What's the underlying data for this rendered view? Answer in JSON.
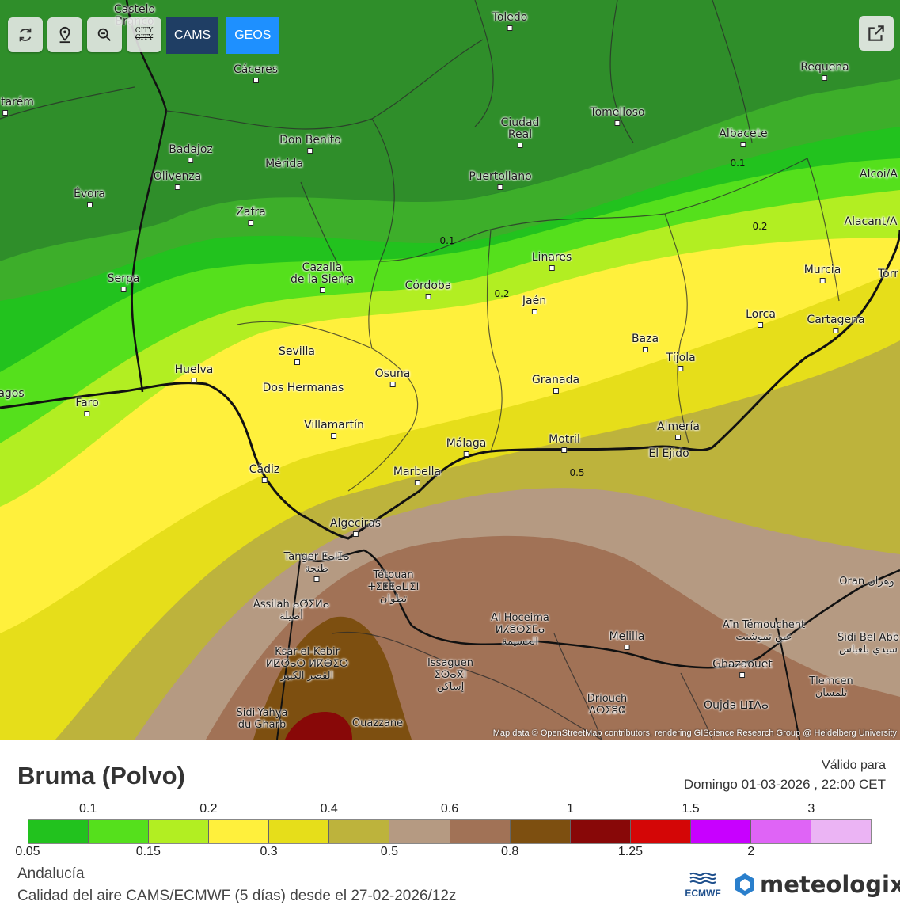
{
  "toolbar": {
    "refresh_icon": "refresh-icon",
    "location_icon": "map-pin-icon",
    "zoom_icon": "zoom-out-icon",
    "city_icon_top": "CITY",
    "city_icon_bottom": "CITY",
    "cams_label": "CAMS",
    "geos_label": "GEOS",
    "share_icon": "share-icon"
  },
  "map": {
    "attribution": "Map data © OpenStreetMap contributors, rendering GIScience Research Group @ Heidelberg University",
    "contour_labels": [
      "0.1",
      "0.1",
      "0.2",
      "0.2",
      "0.5"
    ],
    "places": [
      {
        "name": "Castelo Branco",
        "lines": [
          "Castelo",
          "Branco"
        ]
      },
      {
        "name": "Toledo"
      },
      {
        "name": "Requena"
      },
      {
        "name": "Cáceres"
      },
      {
        "name": "tarém"
      },
      {
        "name": "Tomelloso"
      },
      {
        "name": "Ciudad Real",
        "lines": [
          "Ciudad",
          "Real"
        ]
      },
      {
        "name": "Albacete"
      },
      {
        "name": "Badajoz"
      },
      {
        "name": "Don Benito"
      },
      {
        "name": "Mérida"
      },
      {
        "name": "Olivenza"
      },
      {
        "name": "Évora"
      },
      {
        "name": "Puertollano"
      },
      {
        "name": "Alcoi/A"
      },
      {
        "name": "Zafra"
      },
      {
        "name": "Alacant/A"
      },
      {
        "name": "Linares"
      },
      {
        "name": "Cazalla de la Sierra",
        "lines": [
          "Cazalla",
          "de la Sierra"
        ]
      },
      {
        "name": "Córdoba"
      },
      {
        "name": "Murcia"
      },
      {
        "name": "Serpa"
      },
      {
        "name": "Jaén"
      },
      {
        "name": "Torr"
      },
      {
        "name": "Lorca"
      },
      {
        "name": "Cartagena"
      },
      {
        "name": "Baza"
      },
      {
        "name": "Sevilla"
      },
      {
        "name": "Tíjola"
      },
      {
        "name": "Huelva"
      },
      {
        "name": "Osuna"
      },
      {
        "name": "Granada"
      },
      {
        "name": "Dos Hermanas"
      },
      {
        "name": "agos"
      },
      {
        "name": "Faro"
      },
      {
        "name": "Villamartín"
      },
      {
        "name": "Almería"
      },
      {
        "name": "Motril"
      },
      {
        "name": "Málaga"
      },
      {
        "name": "El Ejido"
      },
      {
        "name": "Cádiz"
      },
      {
        "name": "Marbella"
      },
      {
        "name": "Algeciras"
      },
      {
        "name": "Tanger ⵟⴰⵏⵊⴰ",
        "lines": [
          "Tanger ⵟⴰⵏⵊⴰ",
          "طنجة"
        ]
      },
      {
        "name": "Tétouan",
        "lines": [
          "Tétouan",
          "ⵜⵉⵟⵟⴰⵡⵉⵏ",
          "تطوان"
        ]
      },
      {
        "name": "Oran",
        "lines": [
          "Oran وهران"
        ]
      },
      {
        "name": "Assilah",
        "lines": [
          "Assilah ⴰⵚⵉⵍⴰ",
          "أصيلة"
        ]
      },
      {
        "name": "Al Hoceima",
        "lines": [
          "Al Hoceima",
          "ⵍⵃⵓⵙⵉⵎⴰ",
          "الحسيمة"
        ]
      },
      {
        "name": "Melilla"
      },
      {
        "name": "Aïn Témouchent",
        "lines": [
          "Aïn Témouchent",
          "عين تموشنت"
        ]
      },
      {
        "name": "Sidi Bel Abbès",
        "lines": [
          "Sidi Bel Abb",
          "سيدي بلعباس"
        ]
      },
      {
        "name": "Ksar-el-Kebir",
        "lines": [
          "Ksar-el-Kebir",
          "ⵍⵇⵚⴰⵔ ⵍⴽⴱⵉⵔ",
          "القصر الكبير"
        ]
      },
      {
        "name": "Issaguen",
        "lines": [
          "Issaguen",
          "ⵉⵙⴰⴳⵏ",
          "إساكن"
        ]
      },
      {
        "name": "Ghazaouet"
      },
      {
        "name": "Tlemcen",
        "lines": [
          "Tlemcen",
          "تلمسان"
        ]
      },
      {
        "name": "Driouch",
        "lines": [
          "Driouch",
          "ⴷⵔⵉⵓⵛ"
        ]
      },
      {
        "name": "Oujda",
        "lines": [
          "Oujda ⵡⵊⴷⴰ"
        ]
      },
      {
        "name": "Sidi-Yahya du Gharb",
        "lines": [
          "Sidi-Yahya",
          "du Gharb"
        ]
      },
      {
        "name": "Ouazzane"
      }
    ]
  },
  "header": {
    "title": "Bruma (Polvo)",
    "valid_label": "Válido para",
    "valid_date": "Domingo 01-03-2026 , 22:00 CET"
  },
  "legend": {
    "colors": [
      "#22c21e",
      "#55e01c",
      "#b2ee22",
      "#fff03c",
      "#e6de1a",
      "#bdb33c",
      "#b59a82",
      "#a17256",
      "#7d4f10",
      "#880808",
      "#d40606",
      "#c800ff",
      "#df64f6",
      "#ebb4f4"
    ],
    "top_ticks": [
      "0.1",
      "0.2",
      "0.4",
      "0.6",
      "1",
      "1.5",
      "3"
    ],
    "bottom_ticks": [
      "0.05",
      "0.15",
      "0.3",
      "0.5",
      "0.8",
      "1.25",
      "2"
    ]
  },
  "footer": {
    "region": "Andalucía",
    "source": "Calidad del aire CAMS/ECMWF (5 días) desde el 27-02-2026/12z",
    "ecmwf_label": "ECMWF",
    "brand": "meteologix"
  }
}
